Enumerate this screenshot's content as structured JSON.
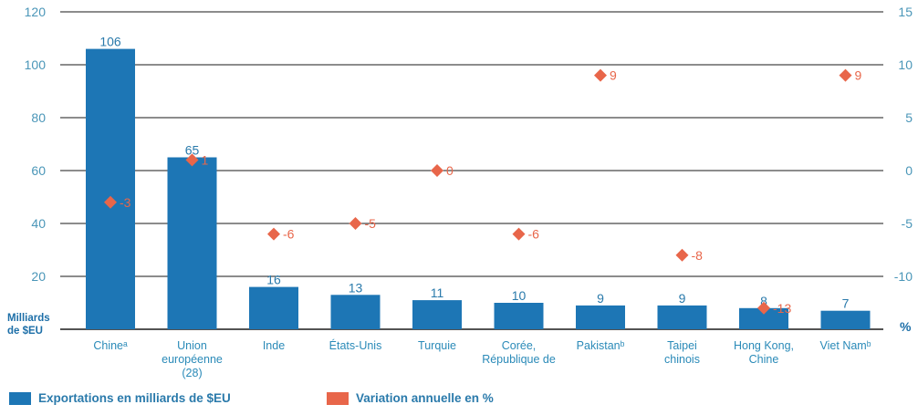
{
  "chart_data": {
    "type": "bar",
    "categories": [
      [
        "Chineᵃ"
      ],
      [
        "Union",
        "européenne",
        "(28)"
      ],
      [
        "Inde"
      ],
      [
        "États-Unis"
      ],
      [
        "Turquie"
      ],
      [
        "Corée,",
        "République de"
      ],
      [
        "Pakistanᵇ"
      ],
      [
        "Taipei",
        "chinois"
      ],
      [
        "Hong Kong,",
        "Chine"
      ],
      [
        "Viet Namᵇ"
      ]
    ],
    "series": [
      {
        "name": "Exportations en milliards de $EU",
        "type": "bar",
        "axis": "left",
        "values": [
          106,
          65,
          16,
          13,
          11,
          10,
          9,
          9,
          8,
          7
        ],
        "labels": [
          "106",
          "65",
          "16",
          "13",
          "11",
          "10",
          "9",
          "9",
          "8",
          "7"
        ],
        "color": "#1d76b5"
      },
      {
        "name": "Variation annuelle en %",
        "type": "scatter",
        "axis": "right",
        "values": [
          -3,
          1,
          -6,
          -5,
          0,
          -6,
          9,
          -8,
          -13,
          9
        ],
        "labels": [
          "-3",
          "1",
          "-6",
          "-5",
          "0",
          "-6",
          "9",
          "-8",
          "-13",
          "9"
        ],
        "color": "#e8664a"
      }
    ],
    "y_left": {
      "label_lines": [
        "Milliards",
        "de $EU"
      ],
      "lim": [
        0,
        120
      ],
      "ticks": [
        20,
        40,
        60,
        80,
        100,
        120
      ],
      "tick_labels": [
        "20",
        "40",
        "60",
        "80",
        "100",
        "120"
      ]
    },
    "y_right": {
      "label": "%",
      "lim": [
        -15,
        15
      ],
      "ticks": [
        -10,
        -5,
        0,
        5,
        10,
        15
      ],
      "tick_labels": [
        "-10",
        "-5",
        "0",
        "5",
        "10",
        "15"
      ]
    },
    "grid": true,
    "legend_position": "bottom-left"
  }
}
